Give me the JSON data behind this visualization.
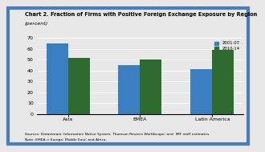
{
  "title": "Chart 2. Fraction of Firms with Positive Foreign Exchange Exposure by Region",
  "subtitle": "(percent)",
  "categories": [
    "Asia",
    "EMEA",
    "Latin America"
  ],
  "series": [
    {
      "label": "2001-07",
      "values": [
        65,
        45,
        41
      ],
      "color": "#3a7fc1"
    },
    {
      "label": "2010-14",
      "values": [
        52,
        50,
        59
      ],
      "color": "#2e6b2e"
    }
  ],
  "ylim": [
    0,
    70
  ],
  "yticks": [
    0,
    10,
    20,
    30,
    40,
    50,
    60,
    70
  ],
  "source_text1": "Sources: Datastream; Information Notice System; Thomson Reuters Worldscope; and  IMF staff estimates.",
  "source_text2": "Note: EMEA = Europe; Middle East; and Africa.",
  "background_color": "#e8e8e8",
  "border_color": "#4a7dbf",
  "bar_width": 0.3
}
